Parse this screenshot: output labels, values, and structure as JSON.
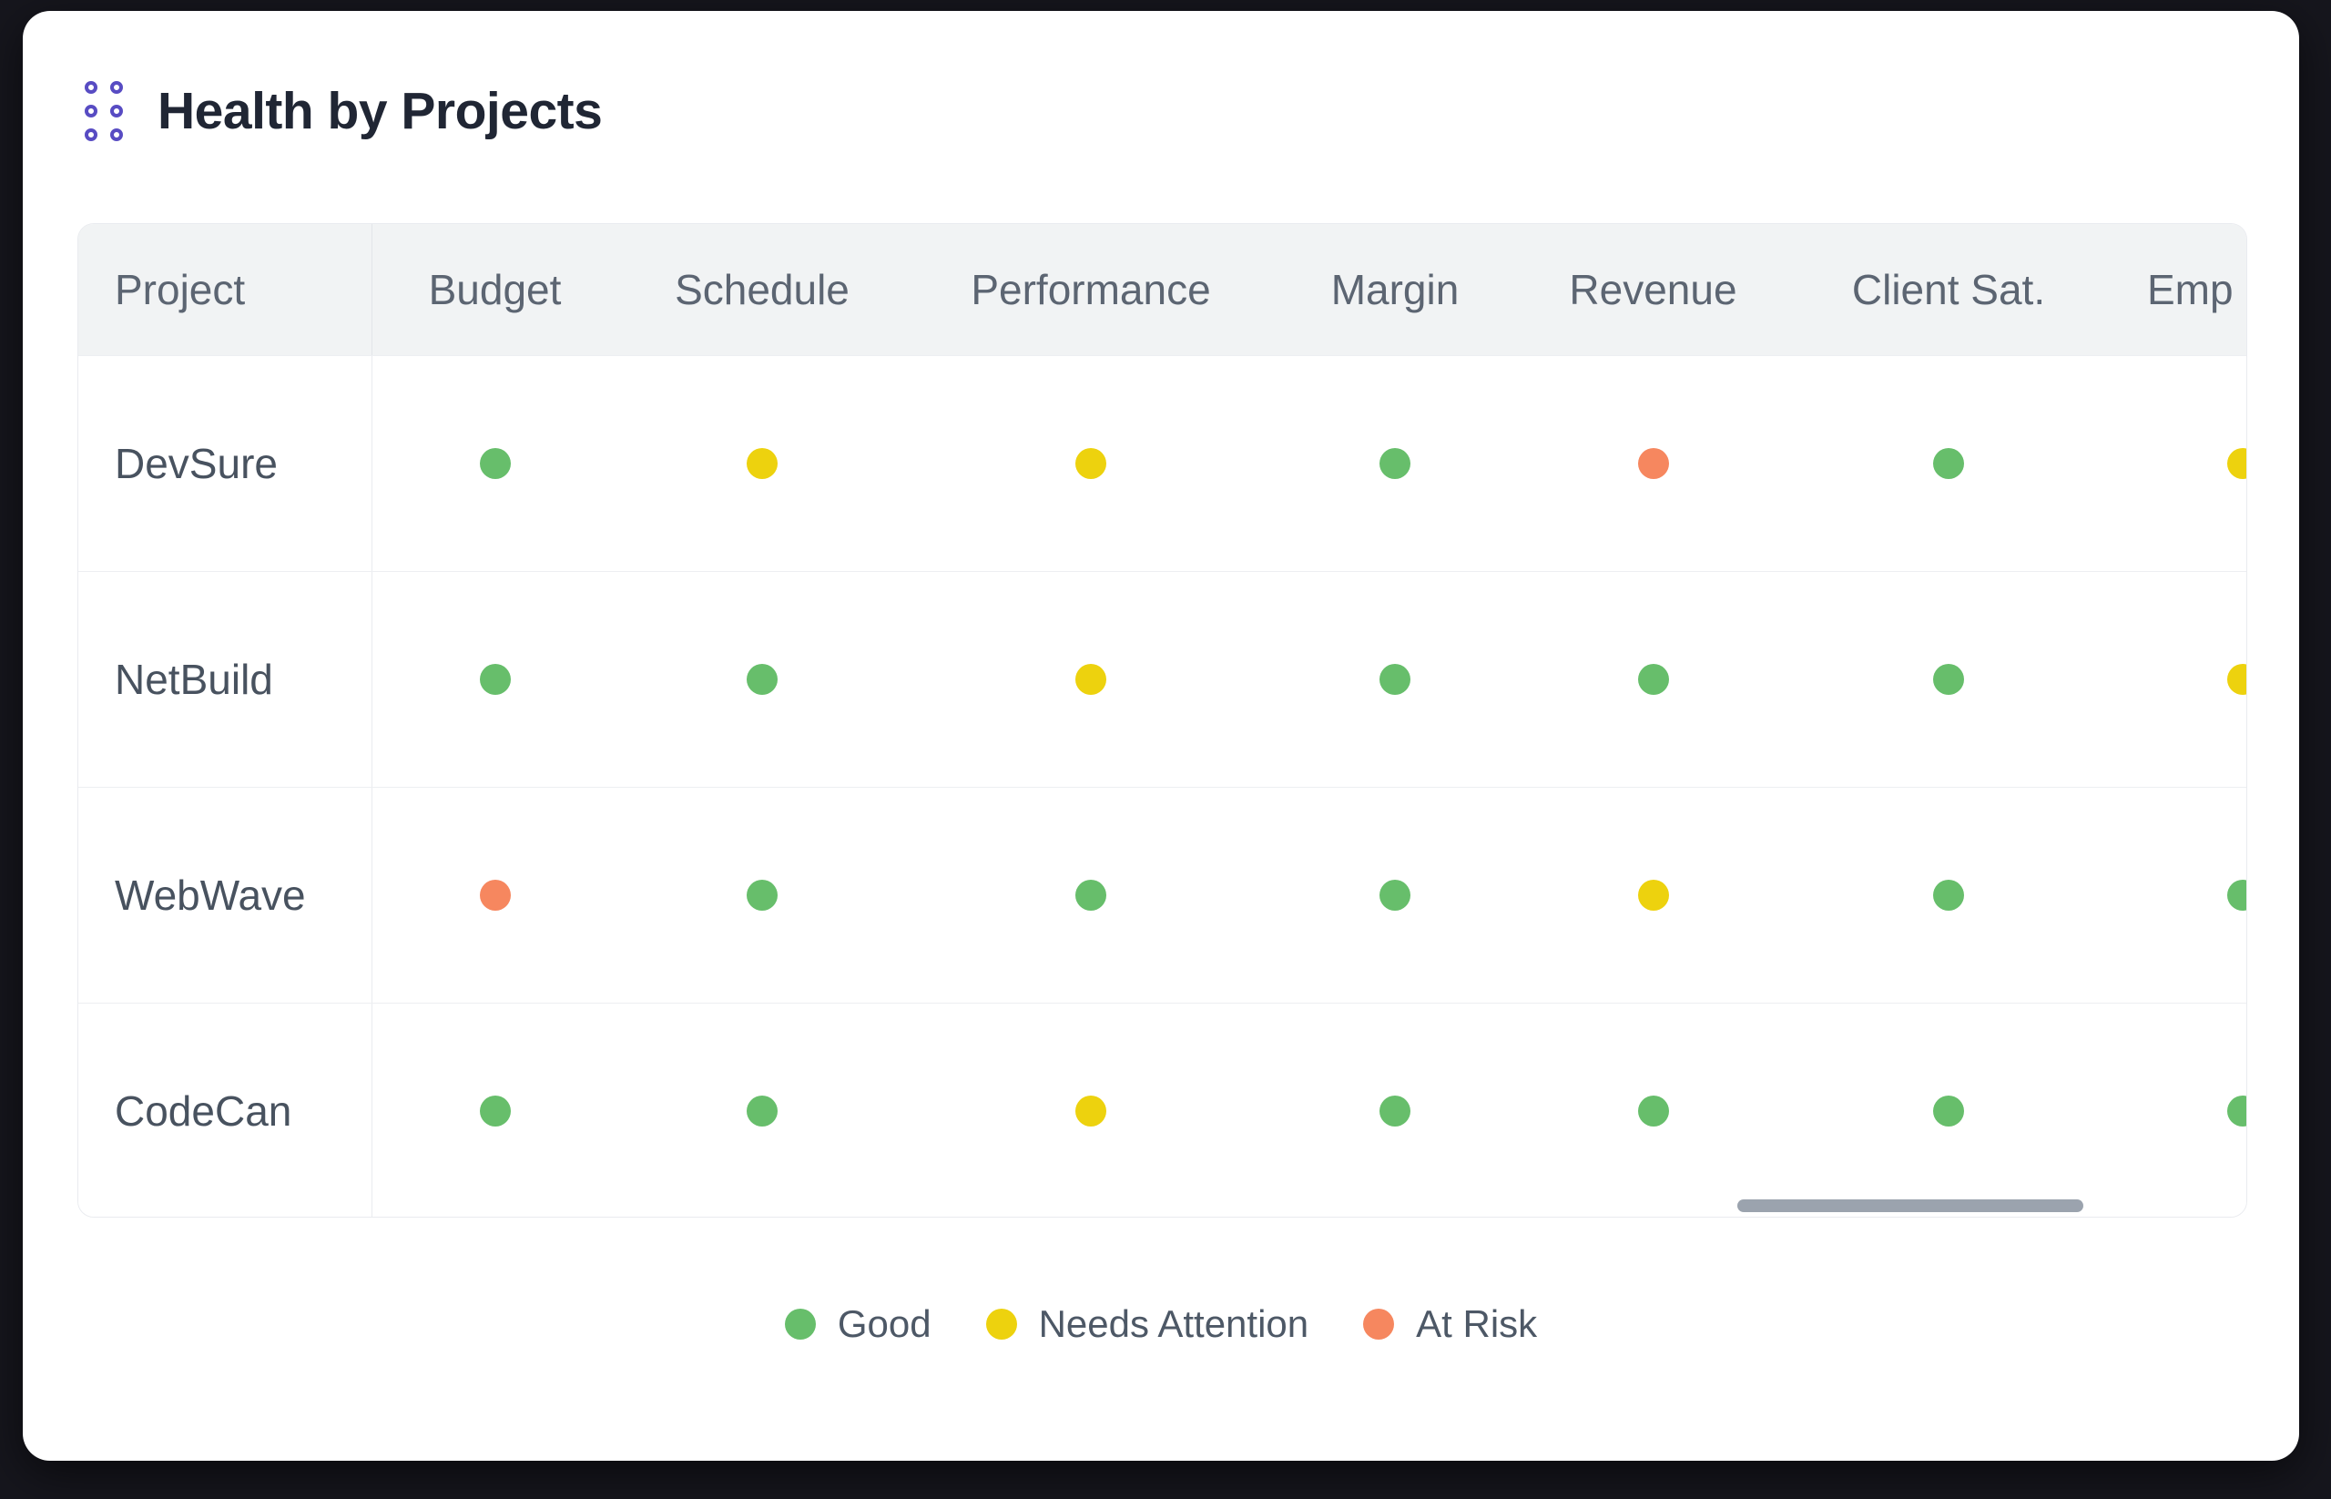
{
  "widget": {
    "title": "Health by Projects"
  },
  "icons": {
    "drag_handle": "grip-dots-2x3"
  },
  "table": {
    "columns": [
      {
        "key": "project",
        "label": "Project"
      },
      {
        "key": "budget",
        "label": "Budget"
      },
      {
        "key": "schedule",
        "label": "Schedule"
      },
      {
        "key": "performance",
        "label": "Performance"
      },
      {
        "key": "margin",
        "label": "Margin"
      },
      {
        "key": "revenue",
        "label": "Revenue"
      },
      {
        "key": "client-sat",
        "label": "Client Sat."
      },
      {
        "key": "emp",
        "label": "Emp",
        "clipped": true
      }
    ],
    "rows": [
      {
        "project": "DevSure",
        "statuses": [
          "good",
          "needs_attention",
          "needs_attention",
          "good",
          "at_risk",
          "good",
          "needs_attention"
        ]
      },
      {
        "project": "NetBuild",
        "statuses": [
          "good",
          "good",
          "needs_attention",
          "good",
          "good",
          "good",
          "needs_attention"
        ]
      },
      {
        "project": "WebWave",
        "statuses": [
          "at_risk",
          "good",
          "good",
          "good",
          "needs_attention",
          "good",
          "good"
        ]
      },
      {
        "project": "CodeCan",
        "statuses": [
          "good",
          "good",
          "needs_attention",
          "good",
          "good",
          "good",
          "good"
        ]
      }
    ]
  },
  "legend": [
    {
      "status": "good",
      "label": "Good"
    },
    {
      "status": "needs_attention",
      "label": "Needs Attention"
    },
    {
      "status": "at_risk",
      "label": "At Risk"
    }
  ],
  "colors": {
    "good": "#67be6b",
    "needs_attention": "#edd20e",
    "at_risk": "#f6875f",
    "accent": "#584cc3",
    "scrollbar_thumb": "#9ba3ae",
    "header_bg": "#f1f3f4",
    "card_bg": "#ffffff",
    "page_bg": "#16161d"
  }
}
